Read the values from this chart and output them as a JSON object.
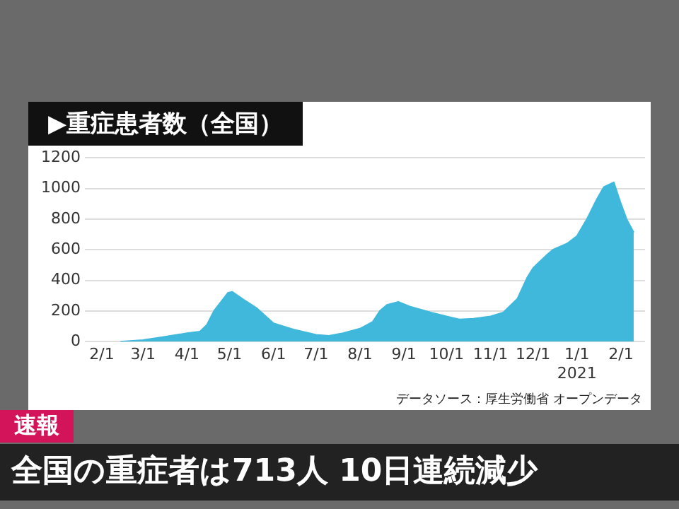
{
  "chart_data": {
    "type": "area",
    "title": "▶重症患者数（全国）",
    "x": [
      "2020-02-14",
      "2020-03-01",
      "2020-03-15",
      "2020-04-01",
      "2020-04-10",
      "2020-04-15",
      "2020-04-20",
      "2020-04-25",
      "2020-04-30",
      "2020-05-03",
      "2020-05-10",
      "2020-05-20",
      "2020-06-01",
      "2020-06-15",
      "2020-07-01",
      "2020-07-10",
      "2020-07-20",
      "2020-08-01",
      "2020-08-10",
      "2020-08-15",
      "2020-08-20",
      "2020-08-28",
      "2020-09-05",
      "2020-09-20",
      "2020-10-01",
      "2020-10-10",
      "2020-10-20",
      "2020-11-01",
      "2020-11-10",
      "2020-11-20",
      "2020-11-27",
      "2020-12-01",
      "2020-12-10",
      "2020-12-15",
      "2020-12-25",
      "2021-01-01",
      "2021-01-08",
      "2021-01-15",
      "2021-01-20",
      "2021-01-27",
      "2021-02-01",
      "2021-02-05",
      "2021-02-10"
    ],
    "values": [
      0,
      10,
      30,
      55,
      65,
      110,
      200,
      260,
      320,
      325,
      280,
      220,
      120,
      80,
      45,
      38,
      55,
      85,
      130,
      200,
      240,
      260,
      230,
      190,
      165,
      145,
      150,
      165,
      190,
      280,
      420,
      480,
      560,
      600,
      640,
      690,
      800,
      930,
      1010,
      1040,
      900,
      800,
      713
    ],
    "color": "#3fb8dc",
    "xlim": [
      "2020-01-20",
      "2021-02-18"
    ],
    "xticks": [
      {
        "value": "2020-02-01",
        "label": "2/1"
      },
      {
        "value": "2020-03-01",
        "label": "3/1"
      },
      {
        "value": "2020-04-01",
        "label": "4/1"
      },
      {
        "value": "2020-05-01",
        "label": "5/1"
      },
      {
        "value": "2020-06-01",
        "label": "6/1"
      },
      {
        "value": "2020-07-01",
        "label": "7/1"
      },
      {
        "value": "2020-08-01",
        "label": "8/1"
      },
      {
        "value": "2020-09-01",
        "label": "9/1"
      },
      {
        "value": "2020-10-01",
        "label": "10/1"
      },
      {
        "value": "2020-11-01",
        "label": "11/1"
      },
      {
        "value": "2020-12-01",
        "label": "12/1"
      },
      {
        "value": "2021-01-01",
        "label": "1/1\n2021"
      },
      {
        "value": "2021-02-01",
        "label": "2/1"
      }
    ],
    "ylim": [
      0,
      1200
    ],
    "yticks": [
      0,
      200,
      400,
      600,
      800,
      1000,
      1200
    ],
    "grid": "y",
    "legend": false,
    "annotations": [
      "データソース：厚生労働省 オープンデータ",
      "速報",
      "全国の重症者は713人 10日連続減少"
    ]
  }
}
